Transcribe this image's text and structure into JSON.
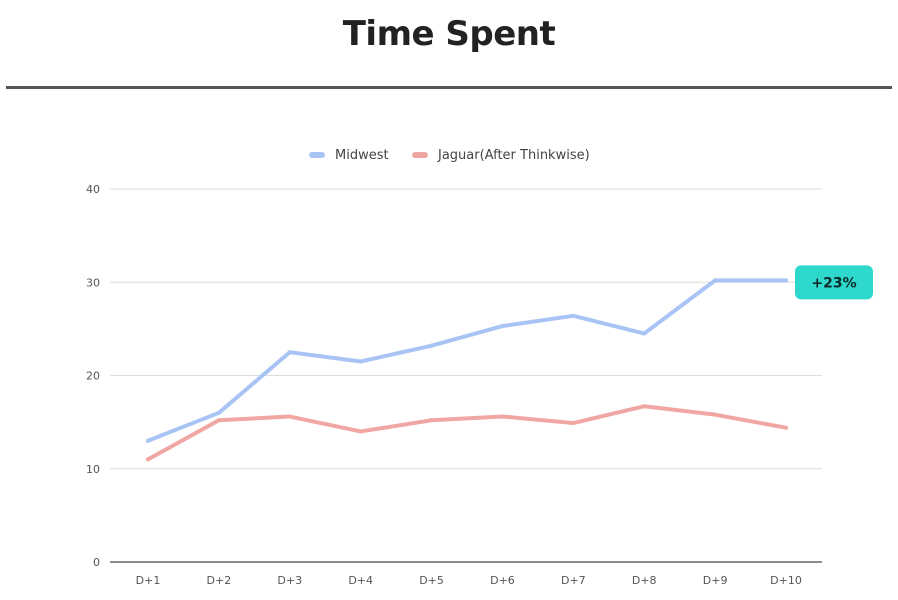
{
  "title": "Time Spent",
  "chart_data": {
    "type": "line",
    "categories": [
      "D+1",
      "D+2",
      "D+3",
      "D+4",
      "D+5",
      "D+6",
      "D+7",
      "D+8",
      "D+9",
      "D+10"
    ],
    "series": [
      {
        "name": "Midwest",
        "color": "#a8c4f5",
        "values": [
          13,
          16,
          22.5,
          21.5,
          23.2,
          25.3,
          26.4,
          24.5,
          30.2,
          30.2
        ]
      },
      {
        "name": "Jaguar(After Thinkwise)",
        "color": "#f0a7a3",
        "values": [
          11,
          15.2,
          15.6,
          14,
          15.2,
          15.6,
          14.9,
          16.7,
          15.8,
          14.4
        ]
      }
    ],
    "yticks": [
      0,
      10,
      20,
      30,
      40
    ],
    "ylim": [
      0,
      40
    ],
    "grid": true,
    "legend": "top-center",
    "annotation": {
      "label": "+23%",
      "color": "#2fd8cc",
      "series": "Midwest",
      "category": "D+10"
    }
  }
}
